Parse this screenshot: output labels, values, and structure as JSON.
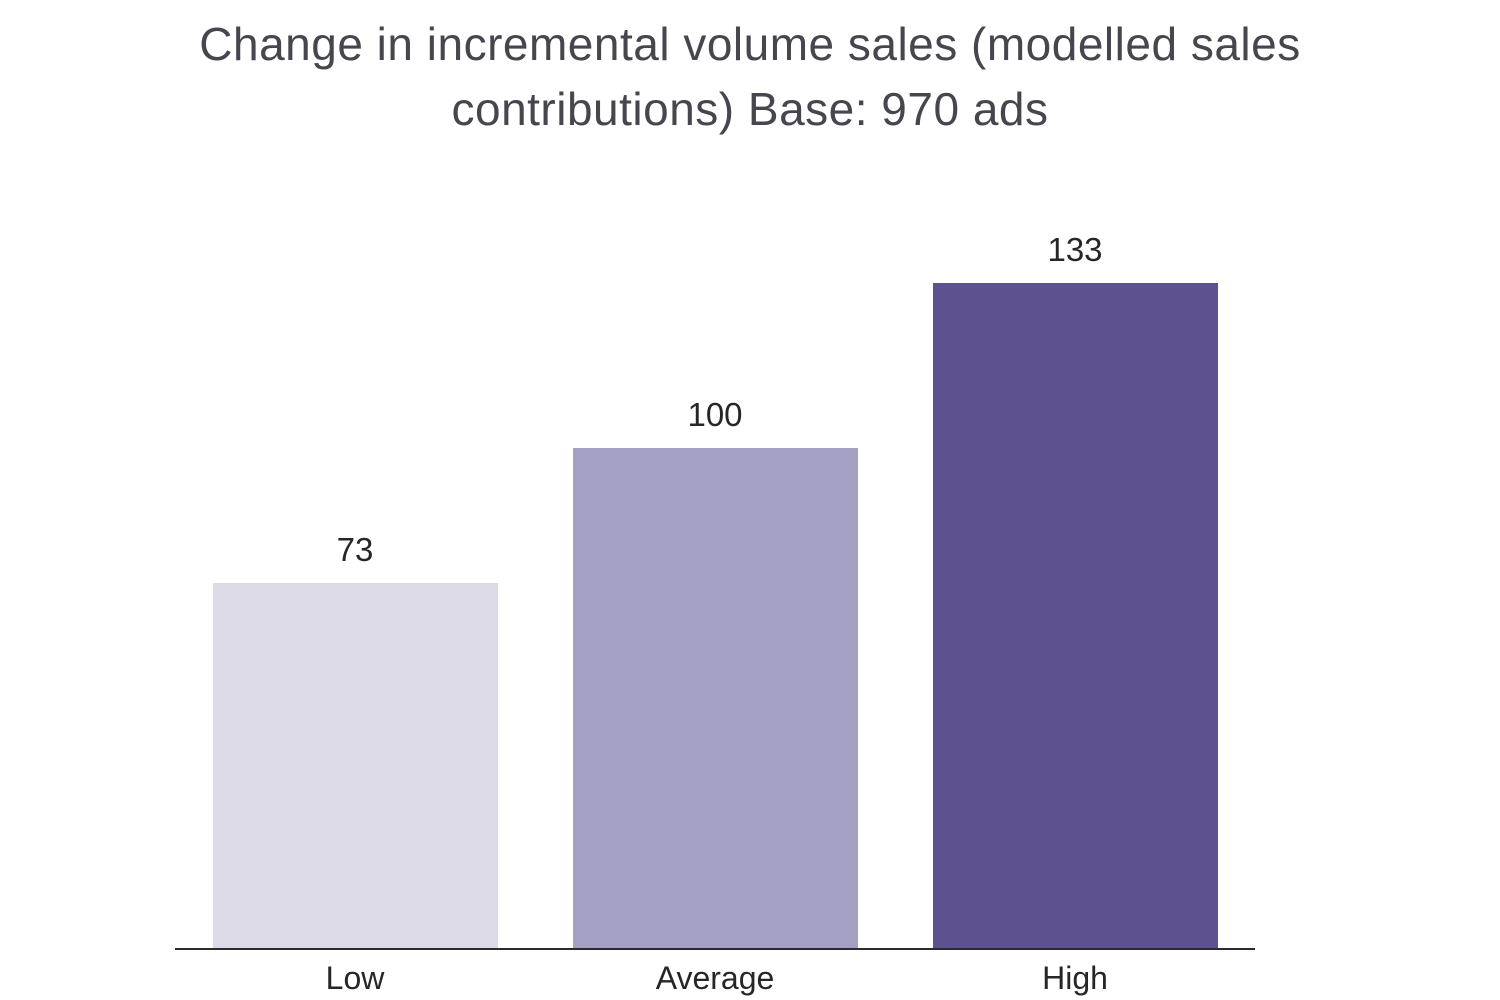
{
  "title": "Change in incremental volume sales (modelled sales contributions) Base: 970 ads",
  "chart_data": {
    "type": "bar",
    "title": "Change in incremental volume sales (modelled sales contributions) Base: 970 ads",
    "categories": [
      "Low",
      "Average",
      "High"
    ],
    "values": [
      73,
      100,
      133
    ],
    "xlabel": "",
    "ylabel": "",
    "ylim": [
      0,
      140
    ],
    "grid": false,
    "legend": "none",
    "bar_colors": [
      "#dcdae7",
      "#a3a0c4",
      "#5e5190"
    ],
    "title_color": "#46464e",
    "value_label_color": "#262626",
    "axis_color": "#2b2b2b"
  }
}
